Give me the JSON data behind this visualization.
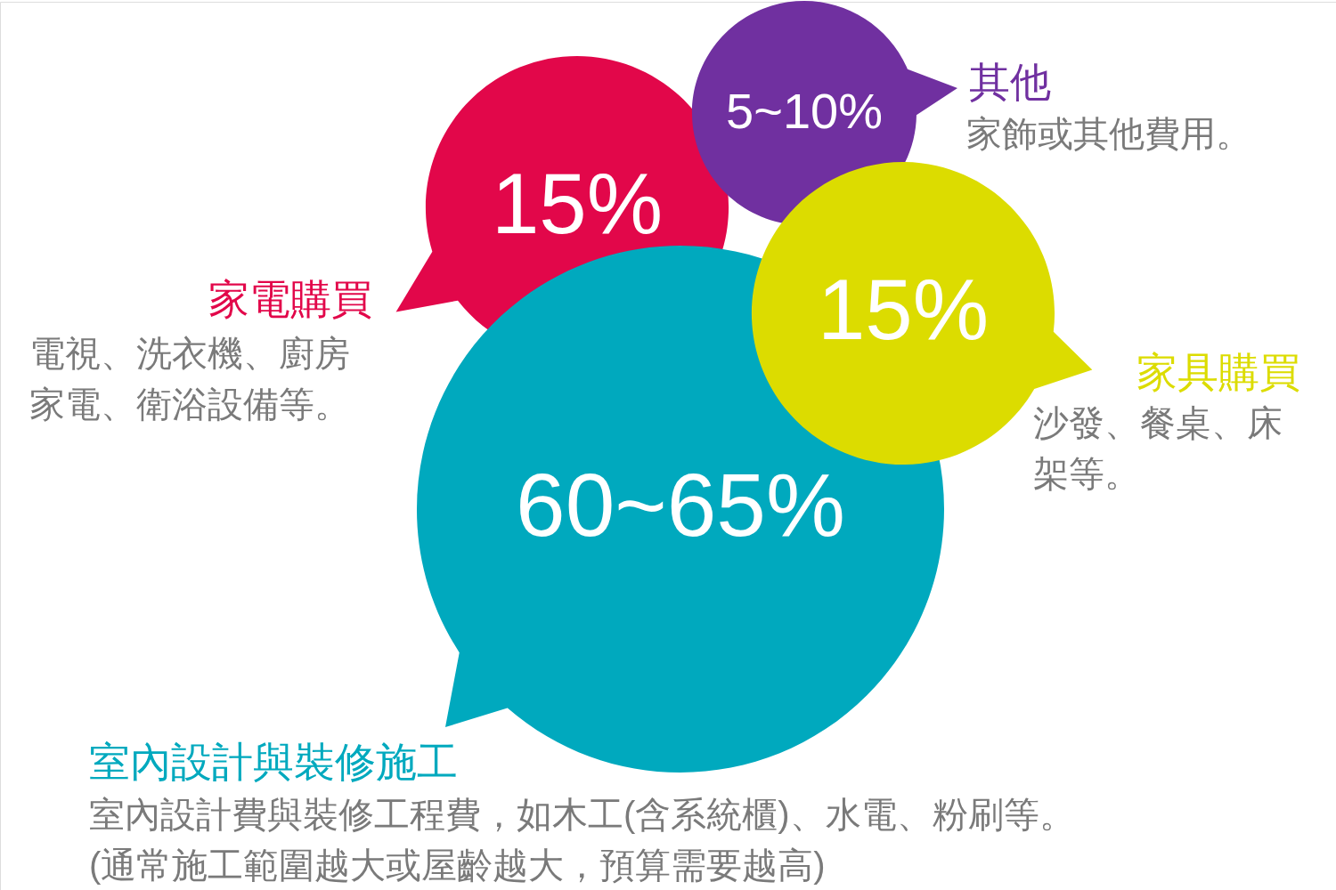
{
  "chart_data": {
    "type": "other",
    "categories": [
      "其他",
      "家電購買",
      "家具購買",
      "室內設計與裝修施工"
    ],
    "values": [
      5,
      15,
      15,
      60
    ],
    "value_labels": [
      "5~10%",
      "15%",
      "15%",
      "60~65%"
    ],
    "colors": [
      "#7030a0",
      "#e2074a",
      "#dcdc00",
      "#00a9be"
    ],
    "annotations": [
      "家飾或其他費用。",
      "電視、洗衣機、廚房家電、衛浴設備等。",
      "沙發、餐桌、床架等。",
      "室內設計費與裝修工程費，如木工(含系統櫃)、水電、粉刷等。\n(通常施工範圍越大或屋齡越大，預算需要越高)"
    ]
  }
}
